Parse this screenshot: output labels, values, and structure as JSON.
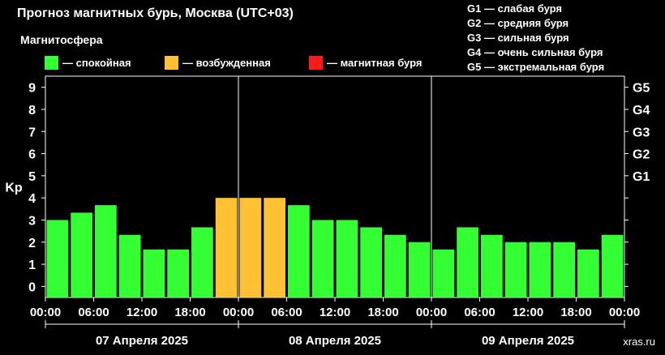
{
  "title": "Прогноз магнитных бурь, Москва (UTC+03)",
  "magnetosphere_title": "Магнитосфера",
  "legend": [
    {
      "label": "— спокойная",
      "color": "#33ff33"
    },
    {
      "label": "— возбужденная",
      "color": "#ffc033"
    },
    {
      "label": "— магнитная буря",
      "color": "#ff1a1a"
    }
  ],
  "storm_scale": [
    "G1 — слабая буря",
    "G2 — средняя буря",
    "G3 — сильная буря",
    "G4 — очень сильная буря",
    "G5 — экстремальная буря"
  ],
  "watermark": "xras.ru",
  "chart_data": {
    "type": "bar",
    "ylabel": "Kp",
    "ylim": [
      0,
      9
    ],
    "yticks": [
      0,
      1,
      2,
      3,
      4,
      5,
      6,
      7,
      8,
      9
    ],
    "right_ticks": [
      {
        "value": 5,
        "label": "G1"
      },
      {
        "value": 6,
        "label": "G2"
      },
      {
        "value": 7,
        "label": "G3"
      },
      {
        "value": 8,
        "label": "G4"
      },
      {
        "value": 9,
        "label": "G5"
      }
    ],
    "x_tick_labels": [
      "00:00",
      "06:00",
      "12:00",
      "18:00",
      "00:00",
      "06:00",
      "12:00",
      "18:00",
      "00:00",
      "06:00",
      "12:00",
      "18:00",
      "00:00"
    ],
    "days": [
      "07 Апреля 2025",
      "08 Апреля 2025",
      "09 Апреля 2025"
    ],
    "bars_per_day": 8,
    "values": [
      3.0,
      3.33,
      3.67,
      2.33,
      1.67,
      1.67,
      2.67,
      4.0,
      4.0,
      4.0,
      3.67,
      3.0,
      3.0,
      2.67,
      2.33,
      2.0,
      1.67,
      2.67,
      2.33,
      2.0,
      2.0,
      2.0,
      1.67,
      2.33
    ],
    "levels": [
      "quiet",
      "quiet",
      "quiet",
      "quiet",
      "quiet",
      "quiet",
      "quiet",
      "active",
      "active",
      "active",
      "quiet",
      "quiet",
      "quiet",
      "quiet",
      "quiet",
      "quiet",
      "quiet",
      "quiet",
      "quiet",
      "quiet",
      "quiet",
      "quiet",
      "quiet",
      "quiet"
    ],
    "level_colors": {
      "quiet": "#33ff33",
      "active": "#ffc033",
      "storm": "#ff1a1a"
    }
  }
}
